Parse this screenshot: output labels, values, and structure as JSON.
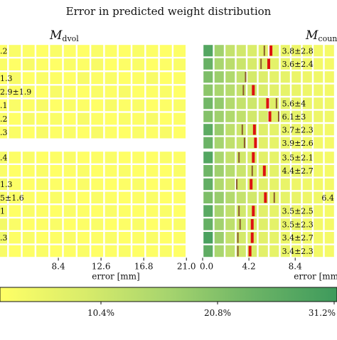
{
  "chart_data": {
    "type": "heatmap",
    "title": "Error in predicted weight distribution",
    "colorbar": {
      "ticks": [
        "10.4%",
        "20.8%",
        "31.2%"
      ],
      "colors": [
        "#ffff66",
        "#d9ec6a",
        "#a6d46e",
        "#6cb466",
        "#3e9a5c"
      ]
    },
    "marker_colors": {
      "median": "#8b5a2b",
      "mean": "#dd1111"
    },
    "panels": [
      {
        "label_main": "M",
        "label_sub": "dvol",
        "xlabel": "",
        "x_ticks": [],
        "row_labels": [
          ".2",
          "",
          "1.3",
          "2.9±1.9",
          ".1",
          ".2",
          ".3"
        ],
        "grid": [
          [
            0.0,
            0.02,
            0.01,
            0.0,
            0.02,
            0.01,
            0.0,
            0.02,
            0.01,
            0.0,
            0.02,
            0.01,
            0.0,
            0.01
          ],
          [
            0.02,
            0.0,
            0.03,
            0.01,
            0.0,
            0.02,
            0.01,
            0.03,
            0.0,
            0.01,
            0.02,
            0.0,
            0.01,
            0.02
          ],
          [
            0.01,
            0.03,
            0.0,
            0.02,
            0.01,
            0.0,
            0.03,
            0.01,
            0.02,
            0.0,
            0.01,
            0.03,
            0.0,
            0.01
          ],
          [
            0.03,
            0.01,
            0.02,
            0.0,
            0.03,
            0.01,
            0.0,
            0.02,
            0.01,
            0.03,
            0.0,
            0.01,
            0.02,
            0.0
          ],
          [
            0.0,
            0.02,
            0.01,
            0.03,
            0.0,
            0.02,
            0.01,
            0.0,
            0.03,
            0.01,
            0.02,
            0.0,
            0.01,
            0.02
          ],
          [
            0.02,
            0.0,
            0.03,
            0.01,
            0.02,
            0.0,
            0.03,
            0.01,
            0.0,
            0.02,
            0.01,
            0.03,
            0.0,
            0.01
          ],
          [
            0.01,
            0.02,
            0.0,
            0.03,
            0.01,
            0.02,
            0.0,
            0.03,
            0.01,
            0.0,
            0.02,
            0.01,
            0.03,
            0.0
          ]
        ]
      },
      {
        "label_main": "M",
        "label_sub": "count",
        "xlabel": "",
        "x_ticks": [],
        "row_labels": [
          "3.8±2.8",
          "3.6±2.4",
          "",
          "",
          "5.6±4",
          "6.1±3",
          "3.7±2.3",
          "3.9±2.6"
        ],
        "grid": [
          [
            0.55,
            0.32,
            0.22,
            0.18,
            0.15,
            0.12,
            0.1,
            0.08,
            0.07,
            0.06,
            0.05,
            0.04
          ],
          [
            0.48,
            0.3,
            0.25,
            0.2,
            0.16,
            0.13,
            0.11,
            0.09,
            0.08,
            0.06,
            0.05,
            0.04
          ],
          [
            0.42,
            0.34,
            0.28,
            0.22,
            0.17,
            0.14,
            0.11,
            0.1,
            0.08,
            0.07,
            0.06,
            0.05
          ],
          [
            0.38,
            0.3,
            0.26,
            0.21,
            0.18,
            0.15,
            0.12,
            0.1,
            0.09,
            0.07,
            0.06,
            0.05
          ],
          [
            0.45,
            0.36,
            0.27,
            0.22,
            0.19,
            0.15,
            0.13,
            0.11,
            0.09,
            0.08,
            0.07,
            0.06
          ],
          [
            0.4,
            0.33,
            0.28,
            0.23,
            0.18,
            0.16,
            0.13,
            0.11,
            0.1,
            0.08,
            0.07,
            0.06
          ],
          [
            0.52,
            0.35,
            0.24,
            0.19,
            0.16,
            0.13,
            0.11,
            0.09,
            0.08,
            0.07,
            0.06,
            0.05
          ],
          [
            0.47,
            0.31,
            0.23,
            0.2,
            0.15,
            0.12,
            0.1,
            0.09,
            0.07,
            0.06,
            0.05,
            0.04
          ]
        ],
        "markers": [
          {
            "row": 0,
            "median": 5.6,
            "mean": 6.2
          },
          {
            "row": 1,
            "median": 5.3,
            "mean": 6.0
          },
          {
            "row": 2,
            "median": 3.9,
            "mean": null
          },
          {
            "row": 3,
            "median": 3.7,
            "mean": 4.6
          },
          {
            "row": 4,
            "median": 6.7,
            "mean": 5.9
          },
          {
            "row": 5,
            "median": 6.9,
            "mean": 6.1
          },
          {
            "row": 6,
            "median": 3.6,
            "mean": 4.7
          },
          {
            "row": 7,
            "median": 3.8,
            "mean": 4.8
          }
        ]
      },
      {
        "label_main": "",
        "label_sub": "",
        "xlabel": "error [mm]",
        "x_ticks": [
          {
            "v": 8.4,
            "label": "8.4"
          },
          {
            "v": 12.6,
            "label": "12.6"
          },
          {
            "v": 16.8,
            "label": "16.8"
          },
          {
            "v": 21.0,
            "label": "21.0"
          }
        ],
        "row_labels": [
          ".4",
          "",
          "1.3",
          "5±1.6",
          "1",
          "",
          ".3",
          ""
        ],
        "grid": [
          [
            0.04,
            0.01,
            0.02,
            0.0,
            0.01,
            0.02,
            0.0,
            0.01,
            0.02,
            0.0,
            0.01,
            0.0,
            0.02,
            0.01
          ],
          [
            0.02,
            0.0,
            0.01,
            0.02,
            0.0,
            0.01,
            0.02,
            0.0,
            0.01,
            0.02,
            0.0,
            0.01,
            0.0,
            0.02
          ],
          [
            0.05,
            0.01,
            0.0,
            0.02,
            0.01,
            0.0,
            0.02,
            0.01,
            0.0,
            0.01,
            0.02,
            0.0,
            0.01,
            0.0
          ],
          [
            0.03,
            0.02,
            0.01,
            0.0,
            0.02,
            0.01,
            0.0,
            0.02,
            0.01,
            0.0,
            0.01,
            0.02,
            0.0,
            0.01
          ],
          [
            0.04,
            0.0,
            0.02,
            0.01,
            0.0,
            0.02,
            0.01,
            0.0,
            0.02,
            0.01,
            0.0,
            0.01,
            0.02,
            0.0
          ],
          [
            0.05,
            0.02,
            0.0,
            0.01,
            0.02,
            0.0,
            0.01,
            0.02,
            0.0,
            0.01,
            0.02,
            0.0,
            0.01,
            0.02
          ],
          [
            0.06,
            0.01,
            0.02,
            0.0,
            0.01,
            0.02,
            0.0,
            0.01,
            0.02,
            0.0,
            0.01,
            0.02,
            0.0,
            0.01
          ],
          [
            0.03,
            0.0,
            0.01,
            0.02,
            0.0,
            0.01,
            0.02,
            0.0,
            0.01,
            0.02,
            0.0,
            0.01,
            0.02,
            0.0
          ]
        ]
      },
      {
        "label_main": "",
        "label_sub": "",
        "xlabel": "error [mm]",
        "x_ticks": [
          {
            "v": 0.0,
            "label": "0.0"
          },
          {
            "v": 4.2,
            "label": "4.2"
          },
          {
            "v": 8.4,
            "label": "8.4"
          }
        ],
        "row_labels": [
          "3.5±2.1",
          "4.4±2.7",
          "",
          "6.4",
          "3.5±2.5",
          "3.5±2.3",
          "3.4±2.7",
          "3.4±2.3"
        ],
        "grid": [
          [
            0.55,
            0.3,
            0.22,
            0.18,
            0.15,
            0.12,
            0.1,
            0.08,
            0.07,
            0.06,
            0.05,
            0.04
          ],
          [
            0.46,
            0.33,
            0.26,
            0.2,
            0.16,
            0.13,
            0.11,
            0.09,
            0.08,
            0.07,
            0.05,
            0.04
          ],
          [
            0.5,
            0.28,
            0.21,
            0.17,
            0.14,
            0.12,
            0.1,
            0.09,
            0.07,
            0.06,
            0.05,
            0.04
          ],
          [
            0.42,
            0.35,
            0.27,
            0.22,
            0.18,
            0.15,
            0.12,
            0.1,
            0.09,
            0.07,
            0.06,
            0.05
          ],
          [
            0.53,
            0.31,
            0.23,
            0.18,
            0.15,
            0.12,
            0.1,
            0.09,
            0.07,
            0.06,
            0.05,
            0.04
          ],
          [
            0.49,
            0.32,
            0.24,
            0.19,
            0.15,
            0.13,
            0.11,
            0.09,
            0.08,
            0.06,
            0.05,
            0.04
          ],
          [
            0.58,
            0.34,
            0.22,
            0.17,
            0.14,
            0.12,
            0.1,
            0.08,
            0.07,
            0.06,
            0.05,
            0.04
          ],
          [
            0.51,
            0.3,
            0.23,
            0.18,
            0.15,
            0.12,
            0.1,
            0.09,
            0.07,
            0.06,
            0.05,
            0.04
          ]
        ],
        "markers": [
          {
            "row": 0,
            "median": 3.3,
            "mean": 4.6
          },
          {
            "row": 1,
            "median": 4.5,
            "mean": 5.6
          },
          {
            "row": 2,
            "median": 3.1,
            "mean": 4.4
          },
          {
            "row": 3,
            "median": 6.5,
            "mean": 5.7
          },
          {
            "row": 4,
            "median": 3.3,
            "mean": 4.6
          },
          {
            "row": 5,
            "median": 3.4,
            "mean": 4.5
          },
          {
            "row": 6,
            "median": 3.2,
            "mean": 4.5
          },
          {
            "row": 7,
            "median": 3.2,
            "mean": 4.3
          }
        ]
      }
    ]
  }
}
